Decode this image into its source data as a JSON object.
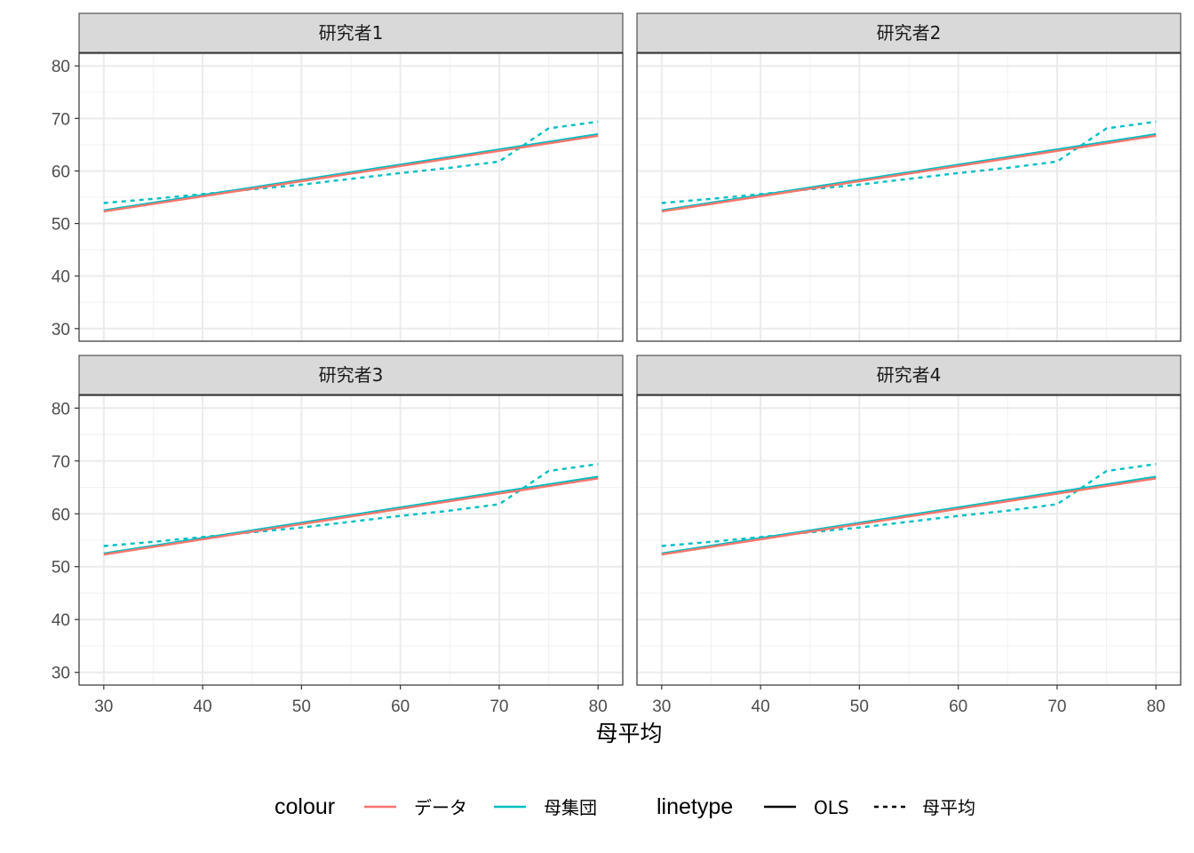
{
  "chart_data": {
    "type": "line",
    "xlabel": "母平均",
    "ylabel": "",
    "xlim": [
      27.5,
      82.5
    ],
    "ylim": [
      27.6,
      82.4
    ],
    "x_ticks": [
      30,
      40,
      50,
      60,
      70,
      80
    ],
    "y_ticks": [
      30,
      40,
      50,
      60,
      70,
      80
    ],
    "grid": true,
    "legend_position": "bottom",
    "legends": {
      "colour": {
        "title": "colour",
        "items": [
          {
            "label": "データ",
            "color": "#F8766D"
          },
          {
            "label": "母集団",
            "color": "#00BFC4"
          }
        ]
      },
      "linetype": {
        "title": "linetype",
        "items": [
          {
            "label": "OLS",
            "dash": "solid"
          },
          {
            "label": "母平均",
            "dash": "dotted"
          }
        ]
      }
    },
    "panels": [
      {
        "strip": "研究者1",
        "series": [
          {
            "colour": "母集団",
            "linetype": "母平均",
            "x": [
              30,
              35,
              40,
              45,
              50,
              55,
              60,
              65,
              70,
              75,
              80
            ],
            "y": [
              53.9,
              54.7,
              55.6,
              56.5,
              57.4,
              58.5,
              59.6,
              60.6,
              61.8,
              68.1,
              69.4
            ]
          },
          {
            "colour": "母集団",
            "linetype": "OLS",
            "x": [
              30,
              80
            ],
            "y": [
              52.5,
              67.0
            ]
          },
          {
            "colour": "データ",
            "linetype": "OLS",
            "x": [
              30,
              80
            ],
            "y": [
              52.3,
              66.7
            ]
          }
        ]
      },
      {
        "strip": "研究者2",
        "series": [
          {
            "colour": "母集団",
            "linetype": "母平均",
            "x": [
              30,
              35,
              40,
              45,
              50,
              55,
              60,
              65,
              70,
              75,
              80
            ],
            "y": [
              53.9,
              54.7,
              55.6,
              56.5,
              57.4,
              58.5,
              59.6,
              60.6,
              61.8,
              68.1,
              69.4
            ]
          },
          {
            "colour": "母集団",
            "linetype": "OLS",
            "x": [
              30,
              80
            ],
            "y": [
              52.5,
              67.0
            ]
          },
          {
            "colour": "データ",
            "linetype": "OLS",
            "x": [
              30,
              80
            ],
            "y": [
              52.3,
              66.7
            ]
          }
        ]
      },
      {
        "strip": "研究者3",
        "series": [
          {
            "colour": "母集団",
            "linetype": "母平均",
            "x": [
              30,
              35,
              40,
              45,
              50,
              55,
              60,
              65,
              70,
              75,
              80
            ],
            "y": [
              53.9,
              54.7,
              55.6,
              56.5,
              57.4,
              58.5,
              59.6,
              60.6,
              61.8,
              68.1,
              69.4
            ]
          },
          {
            "colour": "母集団",
            "linetype": "OLS",
            "x": [
              30,
              80
            ],
            "y": [
              52.5,
              67.0
            ]
          },
          {
            "colour": "データ",
            "linetype": "OLS",
            "x": [
              30,
              80
            ],
            "y": [
              52.3,
              66.7
            ]
          }
        ]
      },
      {
        "strip": "研究者4",
        "series": [
          {
            "colour": "母集団",
            "linetype": "母平均",
            "x": [
              30,
              35,
              40,
              45,
              50,
              55,
              60,
              65,
              70,
              75,
              80
            ],
            "y": [
              53.9,
              54.7,
              55.6,
              56.5,
              57.4,
              58.5,
              59.6,
              60.6,
              61.8,
              68.1,
              69.4
            ]
          },
          {
            "colour": "母集団",
            "linetype": "OLS",
            "x": [
              30,
              80
            ],
            "y": [
              52.5,
              67.0
            ]
          },
          {
            "colour": "データ",
            "linetype": "OLS",
            "x": [
              30,
              80
            ],
            "y": [
              52.3,
              66.7
            ]
          }
        ]
      }
    ]
  }
}
